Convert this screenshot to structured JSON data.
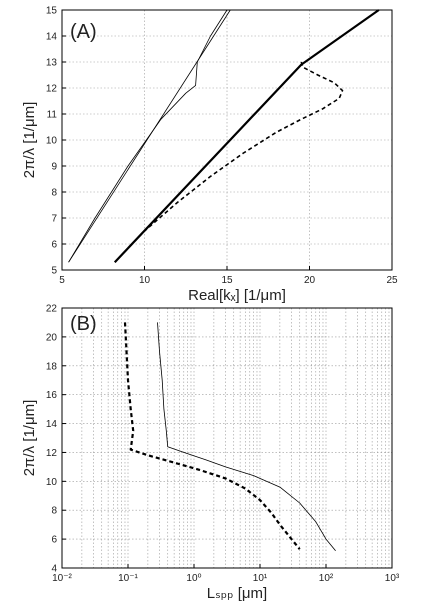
{
  "chart_data": [
    {
      "type": "line",
      "panel_label": "(A)",
      "xlabel": "Real[kₓ] [1/μm]",
      "ylabel": "2π/λ [1/μm]",
      "xlim": [
        5,
        25
      ],
      "ylim": [
        5,
        15
      ],
      "xticks": [
        "5",
        "10",
        "15",
        "20",
        "25"
      ],
      "yticks": [
        "5",
        "6",
        "7",
        "8",
        "9",
        "10",
        "11",
        "12",
        "13",
        "14",
        "15"
      ],
      "grid": true,
      "series": [
        {
          "style": "thin-solid",
          "color": "#000000",
          "x": [
            5.4,
            15.2
          ],
          "y": [
            5.3,
            15.0
          ]
        },
        {
          "style": "thin-solid",
          "color": "#000000",
          "x": [
            5.4,
            7.0,
            9.0,
            11.0,
            12.5,
            13.1,
            13.2,
            14.0,
            15.0
          ],
          "y": [
            5.3,
            7.0,
            9.0,
            10.8,
            11.8,
            12.1,
            13.0,
            14.0,
            15.0
          ]
        },
        {
          "style": "thick-solid",
          "color": "#000000",
          "x": [
            8.2,
            19.5,
            24.2
          ],
          "y": [
            5.3,
            12.9,
            15.0
          ]
        },
        {
          "style": "dashed",
          "color": "#000000",
          "x": [
            8.2,
            10.0,
            12.0,
            14.0,
            16.0,
            18.0,
            19.5,
            20.8,
            21.8,
            22.0,
            21.5,
            20.5,
            19.6,
            19.5
          ],
          "y": [
            5.3,
            6.5,
            7.6,
            8.6,
            9.5,
            10.3,
            10.8,
            11.2,
            11.6,
            11.9,
            12.2,
            12.5,
            12.8,
            13.0
          ]
        }
      ]
    },
    {
      "type": "line",
      "panel_label": "(B)",
      "xlabel": "Lₛₚₚ [μm]",
      "ylabel": "2π/λ [1/μm]",
      "xscale": "log",
      "xlim": [
        0.01,
        1000
      ],
      "ylim": [
        4,
        22
      ],
      "yticks": [
        "4",
        "6",
        "8",
        "10",
        "12",
        "14",
        "16",
        "18",
        "20",
        "22"
      ],
      "xticks": [
        "10⁻²",
        "10⁻¹",
        "10⁰",
        "10¹",
        "10²",
        "10³"
      ],
      "grid": true,
      "series": [
        {
          "style": "thick-dashed",
          "color": "#000000",
          "x": [
            0.09,
            0.095,
            0.1,
            0.11,
            0.12,
            0.11,
            0.2,
            0.5,
            1.2,
            3.0,
            6.0,
            10.0,
            15.0,
            20.0,
            30.0,
            40.0
          ],
          "y": [
            21.0,
            19.0,
            17.0,
            15.0,
            13.5,
            12.2,
            11.8,
            11.3,
            10.8,
            10.2,
            9.5,
            8.7,
            7.8,
            7.0,
            6.0,
            5.3
          ]
        },
        {
          "style": "thin-solid",
          "color": "#000000",
          "x": [
            0.28,
            0.3,
            0.33,
            0.35,
            0.38,
            0.4,
            0.7,
            1.5,
            3.0,
            8.0,
            20.0,
            40.0,
            70.0,
            100.0,
            140.0
          ],
          "y": [
            21.0,
            19.0,
            17.0,
            15.0,
            13.5,
            12.4,
            12.0,
            11.5,
            11.0,
            10.4,
            9.6,
            8.5,
            7.2,
            6.0,
            5.2
          ]
        }
      ]
    }
  ]
}
